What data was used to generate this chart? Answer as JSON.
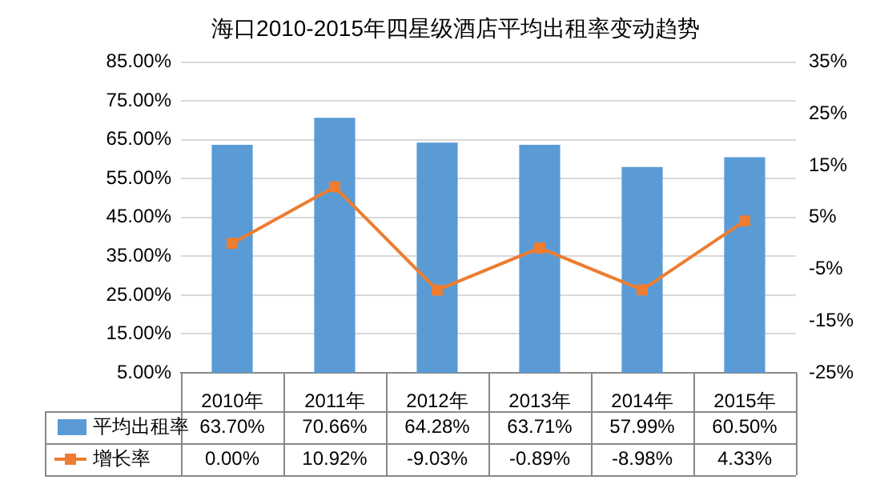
{
  "chart_data": {
    "type": "bar",
    "title": "海口2010-2015年四星级酒店平均出租率变动趋势",
    "categories": [
      "2010年",
      "2011年",
      "2012年",
      "2013年",
      "2014年",
      "2015年"
    ],
    "series": [
      {
        "name": "平均出租率",
        "color": "#5b9bd5",
        "values": [
          63.7,
          70.66,
          64.28,
          63.71,
          57.99,
          60.5
        ],
        "value_labels": [
          "63.70%",
          "70.66%",
          "64.28%",
          "63.71%",
          "57.99%",
          "60.50%"
        ]
      },
      {
        "name": "增长率",
        "type": "line",
        "axis": "y2",
        "color": "#ed7d31",
        "marker": "square",
        "values": [
          0.0,
          10.92,
          -9.03,
          -0.89,
          -8.98,
          4.33
        ],
        "value_labels": [
          "0.00%",
          "10.92%",
          "-9.03%",
          "-0.89%",
          "-8.98%",
          "4.33%"
        ]
      }
    ],
    "ylim": [
      5,
      85
    ],
    "yticks": [
      {
        "value": 5,
        "label": "5.00%"
      },
      {
        "value": 15,
        "label": "15.00%"
      },
      {
        "value": 25,
        "label": "25.00%"
      },
      {
        "value": 35,
        "label": "35.00%"
      },
      {
        "value": 45,
        "label": "45.00%"
      },
      {
        "value": 55,
        "label": "55.00%"
      },
      {
        "value": 65,
        "label": "65.00%"
      },
      {
        "value": 75,
        "label": "75.00%"
      },
      {
        "value": 85,
        "label": "85.00%"
      }
    ],
    "y2lim": [
      -25,
      35
    ],
    "y2ticks": [
      {
        "value": -25,
        "label": "-25%"
      },
      {
        "value": -15,
        "label": "-15%"
      },
      {
        "value": -5,
        "label": "-5%"
      },
      {
        "value": 5,
        "label": "5%"
      },
      {
        "value": 15,
        "label": "15%"
      },
      {
        "value": 25,
        "label": "25%"
      },
      {
        "value": 35,
        "label": "35%"
      }
    ],
    "grid": "y",
    "legend": "bottom"
  }
}
